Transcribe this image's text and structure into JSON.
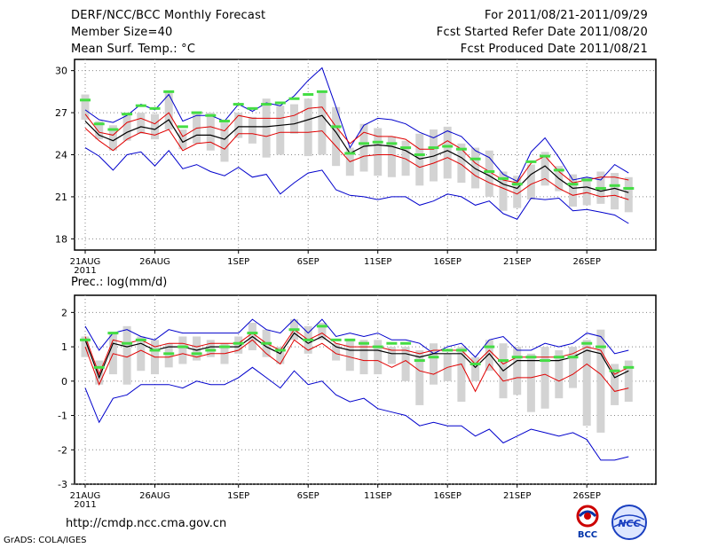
{
  "header": {
    "left": [
      "DERF/NCC/BCC Monthly Forecast",
      "Member Size=40",
      "Mean Surf. Temp.: °C"
    ],
    "right": [
      "For 2011/08/21-2011/09/29",
      "Fcst Started Refer Date 2011/08/20",
      "Fcst Produced Date 2011/08/21"
    ]
  },
  "footer": {
    "url": "http://cmdp.ncc.cma.gov.cn",
    "grads": "GrADS: COLA/IGES",
    "logo_left_text": "BCC",
    "logo_right_text": "NCC"
  },
  "colors": {
    "envelope": "#0000cc",
    "spread": "#e00000",
    "mean": "#000000",
    "median": "#44dd44",
    "bar": "#d3d3d3",
    "grid": "#888888"
  },
  "chart_data": [
    {
      "type": "line",
      "title": "Mean Surf. Temp.: °C",
      "x_ticks": [
        "21AUG\n2011",
        "26AUG",
        "1SEP",
        "6SEP",
        "11SEP",
        "16SEP",
        "21SEP",
        "26SEP"
      ],
      "x_tick_days": [
        0,
        5,
        11,
        16,
        21,
        26,
        31,
        36
      ],
      "y_ticks": [
        18,
        21,
        24,
        27,
        30
      ],
      "ylim": [
        17.2,
        30.8
      ],
      "days": 40,
      "series": [
        {
          "name": "max",
          "values": [
            27.2,
            26.5,
            26.3,
            26.8,
            27.6,
            27.2,
            28.3,
            26.4,
            26.8,
            26.8,
            26.4,
            27.6,
            27.1,
            27.7,
            27.5,
            28.2,
            29.3,
            30.2,
            27.4,
            24.5,
            26.1,
            26.6,
            26.5,
            26.2,
            25.6,
            25.2,
            25.7,
            25.3,
            24.3,
            23.8,
            22.6,
            22.1,
            24.2,
            25.2,
            23.8,
            22.2,
            22.4,
            22.2,
            23.3,
            22.7
          ]
        },
        {
          "name": "upper",
          "values": [
            26.9,
            25.6,
            25.4,
            26.3,
            26.6,
            26.2,
            27.0,
            25.3,
            25.9,
            26.0,
            25.7,
            26.8,
            26.6,
            26.6,
            26.6,
            26.8,
            27.3,
            27.4,
            26.0,
            24.8,
            25.6,
            25.3,
            25.3,
            25.1,
            24.4,
            24.4,
            25.0,
            24.4,
            23.4,
            22.8,
            22.2,
            22.0,
            23.4,
            23.9,
            22.8,
            22.0,
            22.2,
            22.4,
            22.4,
            22.2
          ]
        },
        {
          "name": "mean",
          "values": [
            26.4,
            25.4,
            25.0,
            25.6,
            26.0,
            25.8,
            26.5,
            24.9,
            25.4,
            25.4,
            25.1,
            26.0,
            26.0,
            26.0,
            26.1,
            26.2,
            26.5,
            26.8,
            25.6,
            24.1,
            24.6,
            24.7,
            24.6,
            24.3,
            23.7,
            23.9,
            24.3,
            23.8,
            23.0,
            22.5,
            21.9,
            21.6,
            22.6,
            23.2,
            22.3,
            21.6,
            21.7,
            21.4,
            21.6,
            21.3
          ]
        },
        {
          "name": "lower",
          "values": [
            25.9,
            25.0,
            24.3,
            25.1,
            25.6,
            25.4,
            25.8,
            24.3,
            24.8,
            24.9,
            24.4,
            25.5,
            25.5,
            25.3,
            25.6,
            25.6,
            25.6,
            25.7,
            24.6,
            23.5,
            23.9,
            24.0,
            24.0,
            23.7,
            23.1,
            23.4,
            23.8,
            23.3,
            22.5,
            22.0,
            21.6,
            21.2,
            21.9,
            22.3,
            21.6,
            21.1,
            21.3,
            21.0,
            21.1,
            20.8
          ]
        },
        {
          "name": "min",
          "values": [
            24.5,
            23.9,
            22.9,
            24.0,
            24.2,
            23.2,
            24.3,
            23.0,
            23.3,
            22.8,
            22.5,
            23.1,
            22.4,
            22.6,
            21.2,
            22.0,
            22.7,
            22.9,
            21.5,
            21.1,
            21.0,
            20.8,
            21.0,
            21.0,
            20.4,
            20.7,
            21.2,
            21.0,
            20.4,
            20.7,
            19.8,
            19.4,
            20.9,
            20.8,
            20.9,
            20.0,
            20.1,
            19.9,
            19.7,
            19.1
          ]
        },
        {
          "name": "median",
          "values": [
            27.9,
            26.2,
            25.8,
            26.9,
            27.5,
            27.3,
            28.5,
            26.0,
            27.0,
            26.8,
            26.4,
            27.6,
            27.3,
            27.6,
            27.7,
            28.0,
            28.3,
            28.5,
            26.0,
            24.1,
            24.8,
            24.9,
            24.8,
            24.5,
            24.0,
            24.5,
            24.6,
            24.4,
            23.7,
            22.8,
            22.3,
            21.9,
            23.5,
            23.9,
            22.9,
            21.9,
            22.2,
            21.6,
            21.8,
            21.6
          ]
        }
      ],
      "boxes": [
        [
          26.5,
          28.3
        ],
        [
          25.1,
          26.4
        ],
        [
          24.3,
          26.1
        ],
        [
          25.0,
          26.9
        ],
        [
          25.5,
          27.0
        ],
        [
          25.1,
          26.9
        ],
        [
          25.8,
          28.5
        ],
        [
          24.4,
          25.8
        ],
        [
          24.8,
          26.9
        ],
        [
          24.3,
          27.0
        ],
        [
          23.5,
          26.3
        ],
        [
          25.2,
          27.0
        ],
        [
          24.8,
          26.7
        ],
        [
          23.8,
          28.0
        ],
        [
          24.0,
          27.5
        ],
        [
          25.5,
          27.6
        ],
        [
          23.9,
          28.0
        ],
        [
          24.0,
          28.5
        ],
        [
          23.2,
          27.4
        ],
        [
          22.5,
          24.5
        ],
        [
          22.8,
          26.2
        ],
        [
          22.5,
          25.9
        ],
        [
          22.4,
          25.3
        ],
        [
          22.5,
          25.0
        ],
        [
          21.8,
          25.5
        ],
        [
          22.1,
          25.8
        ],
        [
          22.3,
          26.0
        ],
        [
          22.0,
          24.8
        ],
        [
          21.6,
          24.5
        ],
        [
          21.0,
          24.3
        ],
        [
          20.0,
          22.8
        ],
        [
          20.2,
          22.5
        ],
        [
          20.8,
          23.3
        ],
        [
          21.8,
          24.2
        ],
        [
          21.4,
          23.2
        ],
        [
          20.3,
          22.6
        ],
        [
          20.4,
          22.4
        ],
        [
          20.5,
          22.8
        ],
        [
          20.1,
          22.7
        ],
        [
          19.9,
          22.4
        ]
      ]
    },
    {
      "type": "line",
      "title": "Prec.: log(mm/d)",
      "x_ticks": [
        "21AUG\n2011",
        "26AUG",
        "1SEP",
        "6SEP",
        "11SEP",
        "16SEP",
        "21SEP",
        "26SEP"
      ],
      "x_tick_days": [
        0,
        5,
        11,
        16,
        21,
        26,
        31,
        36
      ],
      "y_ticks": [
        -3,
        -2,
        -1,
        0,
        1,
        2
      ],
      "ylim": [
        -3,
        2.5
      ],
      "days": 40,
      "series": [
        {
          "name": "max",
          "values": [
            1.6,
            0.9,
            1.4,
            1.5,
            1.3,
            1.2,
            1.5,
            1.4,
            1.4,
            1.4,
            1.4,
            1.4,
            1.8,
            1.5,
            1.4,
            1.8,
            1.4,
            1.8,
            1.3,
            1.4,
            1.3,
            1.4,
            1.2,
            1.2,
            1.1,
            0.8,
            1.0,
            1.1,
            0.7,
            1.2,
            1.3,
            0.9,
            0.9,
            1.1,
            1.0,
            1.1,
            1.4,
            1.3,
            0.8,
            0.9
          ]
        },
        {
          "name": "upper",
          "values": [
            1.3,
            0.2,
            1.2,
            1.1,
            1.2,
            1.0,
            1.1,
            1.1,
            1.0,
            1.1,
            1.1,
            1.1,
            1.4,
            1.1,
            0.9,
            1.5,
            1.2,
            1.4,
            1.1,
            1.0,
            1.0,
            1.0,
            0.9,
            0.9,
            0.8,
            0.9,
            0.9,
            0.9,
            0.5,
            0.9,
            0.5,
            0.7,
            0.7,
            0.7,
            0.7,
            0.8,
            1.0,
            0.9,
            0.2,
            0.4
          ]
        },
        {
          "name": "mean",
          "values": [
            1.2,
            0.1,
            1.1,
            1.0,
            1.1,
            0.9,
            1.0,
            1.0,
            0.9,
            1.0,
            1.0,
            1.0,
            1.3,
            1.0,
            0.8,
            1.4,
            1.1,
            1.3,
            1.0,
            0.9,
            0.9,
            0.9,
            0.8,
            0.8,
            0.7,
            0.8,
            0.8,
            0.8,
            0.4,
            0.8,
            0.3,
            0.6,
            0.6,
            0.6,
            0.6,
            0.7,
            0.9,
            0.8,
            0.1,
            0.3
          ]
        },
        {
          "name": "lower",
          "values": [
            1.0,
            -0.1,
            0.8,
            0.7,
            0.9,
            0.7,
            0.7,
            0.8,
            0.7,
            0.8,
            0.8,
            0.9,
            1.2,
            0.8,
            0.5,
            1.2,
            0.9,
            1.1,
            0.8,
            0.7,
            0.6,
            0.6,
            0.4,
            0.6,
            0.3,
            0.2,
            0.4,
            0.5,
            -0.3,
            0.5,
            0.0,
            0.1,
            0.1,
            0.2,
            0.0,
            0.2,
            0.5,
            0.2,
            -0.3,
            -0.2
          ]
        },
        {
          "name": "min",
          "values": [
            -0.2,
            -1.2,
            -0.5,
            -0.4,
            -0.1,
            -0.1,
            -0.1,
            -0.2,
            0.0,
            -0.1,
            -0.1,
            0.1,
            0.4,
            0.1,
            -0.2,
            0.3,
            -0.1,
            0.0,
            -0.4,
            -0.6,
            -0.5,
            -0.8,
            -0.9,
            -1.0,
            -1.3,
            -1.2,
            -1.3,
            -1.3,
            -1.6,
            -1.4,
            -1.8,
            -1.6,
            -1.4,
            -1.5,
            -1.6,
            -1.5,
            -1.7,
            -2.3,
            -2.3,
            -2.2
          ]
        },
        {
          "name": "median",
          "values": [
            1.2,
            0.4,
            1.4,
            1.1,
            1.2,
            0.9,
            0.8,
            1.0,
            0.8,
            0.9,
            1.0,
            1.1,
            1.4,
            1.1,
            0.9,
            1.5,
            1.2,
            1.6,
            1.2,
            1.2,
            1.1,
            1.0,
            1.1,
            1.1,
            0.6,
            0.7,
            0.9,
            0.9,
            0.5,
            1.0,
            0.6,
            0.7,
            0.7,
            0.6,
            0.7,
            0.7,
            1.1,
            1.0,
            0.3,
            0.4
          ]
        }
      ],
      "boxes": [
        [
          0.7,
          1.3
        ],
        [
          -0.1,
          0.6
        ],
        [
          0.2,
          1.4
        ],
        [
          -0.1,
          1.6
        ],
        [
          0.3,
          1.3
        ],
        [
          0.2,
          1.2
        ],
        [
          0.4,
          1.1
        ],
        [
          0.5,
          1.3
        ],
        [
          0.6,
          1.3
        ],
        [
          0.7,
          1.2
        ],
        [
          0.5,
          1.1
        ],
        [
          0.8,
          1.3
        ],
        [
          0.9,
          1.7
        ],
        [
          0.7,
          1.5
        ],
        [
          0.5,
          1.0
        ],
        [
          1.2,
          1.8
        ],
        [
          0.8,
          1.6
        ],
        [
          1.2,
          1.7
        ],
        [
          0.6,
          1.1
        ],
        [
          0.3,
          1.2
        ],
        [
          0.2,
          1.2
        ],
        [
          0.2,
          1.2
        ],
        [
          0.5,
          1.0
        ],
        [
          0.0,
          1.0
        ],
        [
          -0.7,
          0.9
        ],
        [
          -0.1,
          1.1
        ],
        [
          0.0,
          0.8
        ],
        [
          -0.6,
          1.0
        ],
        [
          0.0,
          0.7
        ],
        [
          0.3,
          1.2
        ],
        [
          -0.5,
          1.1
        ],
        [
          -0.4,
          1.0
        ],
        [
          -0.9,
          0.8
        ],
        [
          -0.8,
          1.0
        ],
        [
          -0.5,
          0.9
        ],
        [
          -0.2,
          1.0
        ],
        [
          -1.3,
          1.2
        ],
        [
          -1.5,
          1.5
        ],
        [
          -0.7,
          0.5
        ],
        [
          -0.6,
          0.6
        ]
      ]
    }
  ]
}
